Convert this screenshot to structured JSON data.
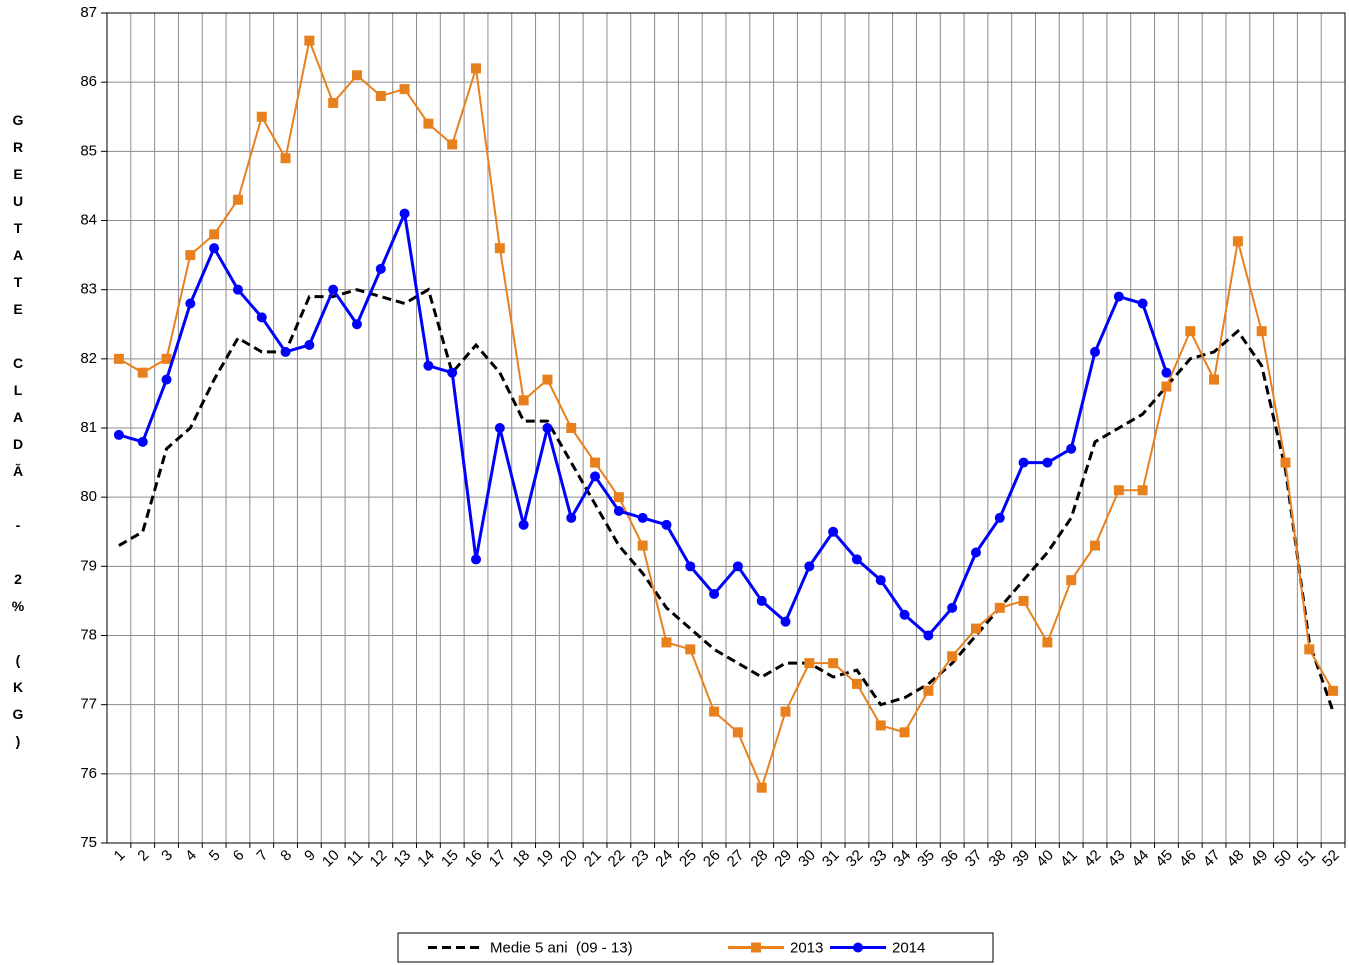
{
  "chart_data": {
    "type": "line",
    "y_label": "GREUTATE CLADĂ - 2% (KG)",
    "categories": [
      "1",
      "2",
      "3",
      "4",
      "5",
      "6",
      "7",
      "8",
      "9",
      "10",
      "11",
      "12",
      "13",
      "14",
      "15",
      "16",
      "17",
      "18",
      "19",
      "20",
      "21",
      "22",
      "23",
      "24",
      "25",
      "26",
      "27",
      "28",
      "29",
      "30",
      "31",
      "32",
      "33",
      "34",
      "35",
      "36",
      "37",
      "38",
      "39",
      "40",
      "41",
      "42",
      "43",
      "44",
      "45",
      "46",
      "47",
      "48",
      "49",
      "50",
      "51",
      "52"
    ],
    "series": [
      {
        "name": "Medie 5 ani  (09 - 13)",
        "color": "#000000",
        "dash": true,
        "marker": "none",
        "values": [
          79.3,
          79.5,
          80.7,
          81.0,
          81.7,
          82.3,
          82.1,
          82.1,
          82.9,
          82.9,
          83.0,
          82.9,
          82.8,
          83.0,
          81.8,
          82.2,
          81.8,
          81.1,
          81.1,
          80.5,
          79.9,
          79.3,
          78.9,
          78.4,
          78.1,
          77.8,
          77.6,
          77.4,
          77.6,
          77.6,
          77.4,
          77.5,
          77.0,
          77.1,
          77.3,
          77.6,
          78.0,
          78.4,
          78.8,
          79.2,
          79.7,
          80.8,
          81.0,
          81.2,
          81.6,
          82.0,
          82.1,
          82.4,
          81.9,
          80.4,
          77.9,
          76.9
        ]
      },
      {
        "name": "2013",
        "color": "#e8801e",
        "dash": false,
        "marker": "square",
        "values": [
          82.0,
          81.8,
          82.0,
          83.5,
          83.8,
          84.3,
          85.5,
          84.9,
          86.6,
          85.7,
          86.1,
          85.8,
          85.9,
          85.4,
          85.1,
          86.2,
          83.6,
          81.4,
          81.7,
          81.0,
          80.5,
          80.0,
          79.3,
          77.9,
          77.8,
          76.9,
          76.6,
          75.8,
          76.9,
          77.6,
          77.6,
          77.3,
          76.7,
          76.6,
          77.2,
          77.7,
          78.1,
          78.4,
          78.5,
          77.9,
          78.8,
          79.3,
          80.1,
          80.1,
          81.6,
          82.4,
          81.7,
          83.7,
          82.4,
          80.5,
          77.8,
          77.2
        ]
      },
      {
        "name": "2014",
        "color": "#0000ff",
        "dash": false,
        "marker": "circle",
        "values": [
          80.9,
          80.8,
          81.7,
          82.8,
          83.6,
          83.0,
          82.6,
          82.1,
          82.2,
          83.0,
          82.5,
          83.3,
          84.1,
          81.9,
          81.8,
          79.1,
          81.0,
          79.6,
          81.0,
          79.7,
          80.3,
          79.8,
          79.7,
          79.6,
          79.0,
          78.6,
          79.0,
          78.5,
          78.2,
          79.0,
          79.5,
          79.1,
          78.8,
          78.3,
          78.0,
          78.4,
          79.2,
          79.7,
          80.5,
          80.5,
          80.7,
          82.1,
          82.9,
          82.8,
          81.8,
          null,
          null,
          null,
          null,
          null,
          null,
          null
        ]
      }
    ],
    "ylim": [
      75,
      87
    ],
    "yticks": [
      75,
      76,
      77,
      78,
      79,
      80,
      81,
      82,
      83,
      84,
      85,
      86,
      87
    ],
    "grid": true
  }
}
